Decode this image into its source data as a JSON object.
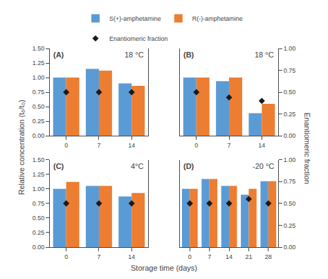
{
  "chart_data": [
    {
      "type": "bar",
      "annotations": [
        "(A)",
        "18 °C"
      ],
      "xlabel": "Storage time (days)",
      "ylabel": "Relative concentration (t₆/t₀)",
      "y2label": "Enantiomeric fraction",
      "legend": "top",
      "categories": [
        "0",
        "7",
        "14"
      ],
      "series": [
        {
          "name": "S(+)-amphetamine",
          "type": "bar",
          "color": "#5B9BD5",
          "values": [
            1.0,
            1.15,
            0.9
          ]
        },
        {
          "name": "R(-)-amphetamine",
          "type": "bar",
          "color": "#ED7D31",
          "values": [
            1.0,
            1.12,
            0.86
          ]
        },
        {
          "name": "Enantiomeric fraction",
          "type": "scatter",
          "marker": "diamond",
          "color": "#1a1a1a",
          "axis": "y2",
          "values": [
            0.5,
            0.5,
            0.5
          ]
        }
      ],
      "ylim": [
        0,
        1.5
      ],
      "yticks": [
        {
          "value": 0,
          "label": "0.00"
        },
        0.25,
        {
          "value": 0.5,
          "label": "0.50"
        },
        0.75,
        {
          "value": 1,
          "label": "1.00"
        },
        1.25,
        {
          "value": 1.5,
          "label": "1.50"
        }
      ],
      "y2lim": [
        0,
        1
      ],
      "grid": false
    },
    {
      "type": "bar",
      "annotations": [
        "(B)",
        "18 °C"
      ],
      "categories": [
        "0",
        "7",
        "14"
      ],
      "series": [
        {
          "name": "S(+)-amphetamine",
          "type": "bar",
          "color": "#5B9BD5",
          "values": [
            1.0,
            0.94,
            0.39
          ]
        },
        {
          "name": "R(-)-amphetamine",
          "type": "bar",
          "color": "#ED7D31",
          "values": [
            1.0,
            1.0,
            0.55
          ]
        },
        {
          "name": "Enantiomeric fraction",
          "type": "scatter",
          "marker": "diamond",
          "color": "#1a1a1a",
          "axis": "y2",
          "values": [
            0.5,
            0.44,
            0.4
          ]
        }
      ],
      "ylim": [
        0,
        1.5
      ],
      "y2lim": [
        0,
        1
      ],
      "y2ticks": [
        {
          "value": 0,
          "label": "0.00"
        },
        0.25,
        {
          "value": 0.5,
          "label": "0.50"
        },
        0.75,
        {
          "value": 1,
          "label": "1.00"
        }
      ],
      "grid": false
    },
    {
      "type": "bar",
      "annotations": [
        "(C)",
        "4°C"
      ],
      "categories": [
        "0",
        "7",
        "14"
      ],
      "series": [
        {
          "name": "S(+)-amphetamine",
          "type": "bar",
          "color": "#5B9BD5",
          "values": [
            1.0,
            1.05,
            0.87
          ]
        },
        {
          "name": "R(-)-amphetamine",
          "type": "bar",
          "color": "#ED7D31",
          "values": [
            1.12,
            1.05,
            0.93
          ]
        },
        {
          "name": "Enantiomeric fraction",
          "type": "scatter",
          "marker": "diamond",
          "color": "#1a1a1a",
          "axis": "y2",
          "values": [
            0.5,
            0.5,
            0.5
          ]
        }
      ],
      "ylim": [
        0,
        1.5
      ],
      "yticks": [
        {
          "value": 0,
          "label": "0.00"
        },
        0.25,
        {
          "value": 0.5,
          "label": "0.50"
        },
        0.75,
        {
          "value": 1,
          "label": "1.00"
        },
        1.25,
        {
          "value": 1.5,
          "label": "1.50"
        }
      ],
      "y2lim": [
        0,
        1
      ],
      "grid": false
    },
    {
      "type": "bar",
      "annotations": [
        "(D)",
        "-20 °C"
      ],
      "categories": [
        "0",
        "7",
        "14",
        "21",
        "28"
      ],
      "series": [
        {
          "name": "S(+)-amphetamine",
          "type": "bar",
          "color": "#5B9BD5",
          "values": [
            1.0,
            1.17,
            1.05,
            0.9,
            1.13
          ]
        },
        {
          "name": "R(-)-amphetamine",
          "type": "bar",
          "color": "#ED7D31",
          "values": [
            1.0,
            1.17,
            1.05,
            1.0,
            1.13
          ]
        },
        {
          "name": "Enantiomeric fraction",
          "type": "scatter",
          "marker": "diamond",
          "color": "#1a1a1a",
          "axis": "y2",
          "values": [
            0.5,
            0.5,
            0.5,
            0.55,
            0.5
          ]
        }
      ],
      "ylim": [
        0,
        1.5
      ],
      "y2lim": [
        0,
        1
      ],
      "y2ticks": [
        {
          "value": 0,
          "label": "0.00"
        },
        0.25,
        {
          "value": 0.5,
          "label": "0.50"
        },
        0.75,
        {
          "value": 1,
          "label": "1.00"
        }
      ],
      "grid": false
    }
  ]
}
